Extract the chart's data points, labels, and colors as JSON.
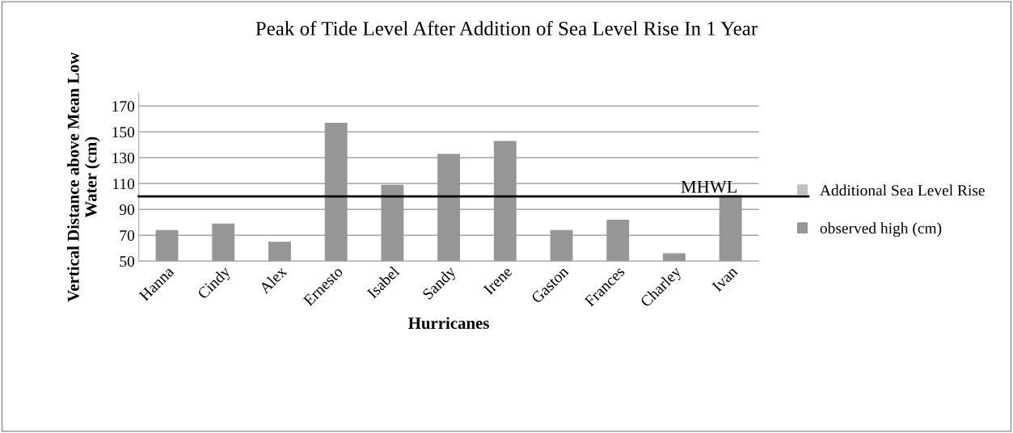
{
  "chart_data": {
    "type": "bar",
    "title": "Peak of Tide Level After Addition of Sea Level Rise In 1 Year",
    "xlabel": "Hurricanes",
    "ylabel": "Vertical Distance above Mean Low\nWater (cm)",
    "categories": [
      "Hanna",
      "Cindy",
      "Alex",
      "Ernesto",
      "Isabel",
      "Sandy",
      "Irene",
      "Gaston",
      "Frances",
      "Charley",
      "Ivan"
    ],
    "stacked": true,
    "series": [
      {
        "name": "observed high (cm)",
        "color": "#969696",
        "values": [
          74,
          79,
          65,
          157,
          109,
          133,
          143,
          74,
          82,
          56,
          101
        ]
      },
      {
        "name": "Additional Sea Level Rise",
        "color": "#c0c0c0",
        "values": [
          null,
          null,
          null,
          null,
          null,
          null,
          null,
          null,
          null,
          null,
          null
        ]
      }
    ],
    "ylim": [
      50,
      180
    ],
    "yticks": [
      50,
      70,
      90,
      110,
      130,
      150,
      170
    ],
    "grid": "y",
    "legend": "right",
    "ref_lines": [
      {
        "axis": "y",
        "value": 100,
        "label": "MHWL",
        "color": "#000000"
      }
    ]
  }
}
